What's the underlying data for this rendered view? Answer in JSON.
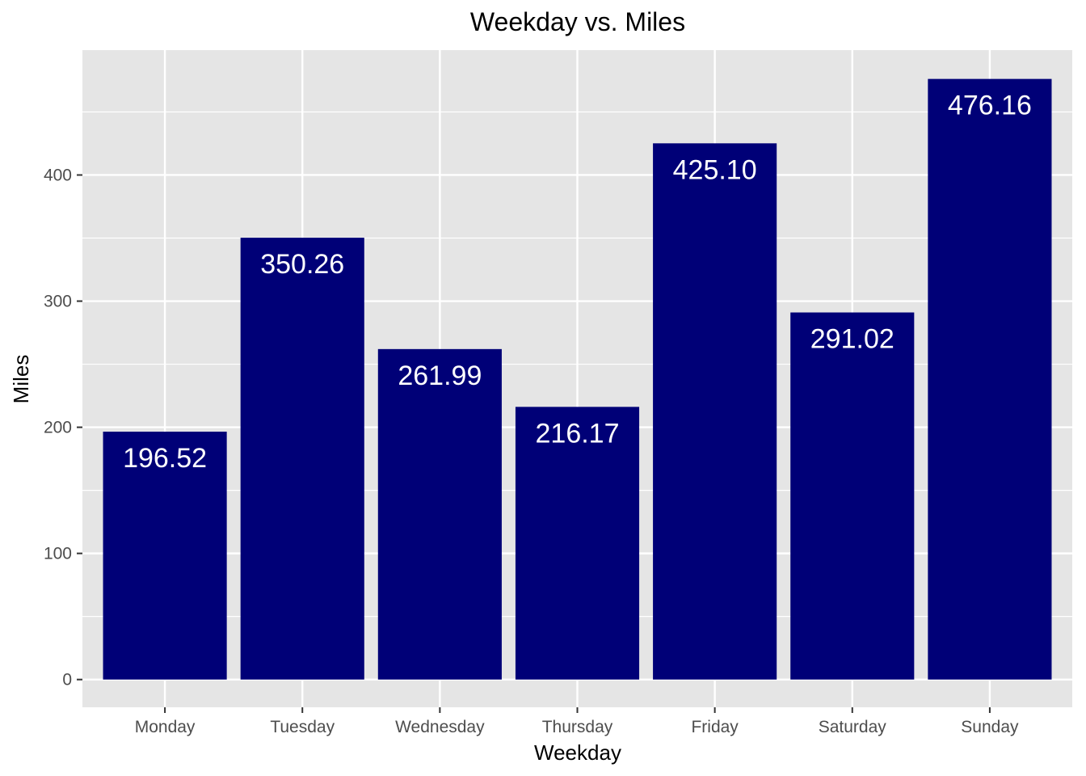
{
  "chart_data": {
    "type": "bar",
    "title": "Weekday vs. Miles",
    "xlabel": "Weekday",
    "ylabel": "Miles",
    "categories": [
      "Monday",
      "Tuesday",
      "Wednesday",
      "Thursday",
      "Friday",
      "Saturday",
      "Sunday"
    ],
    "values": [
      196.52,
      350.26,
      261.99,
      216.17,
      425.1,
      291.02,
      476.16
    ],
    "value_labels": [
      "196.52",
      "350.26",
      "261.99",
      "216.17",
      "425.10",
      "291.02",
      "476.16"
    ],
    "yticks": [
      0,
      100,
      200,
      300,
      400
    ],
    "ytick_labels": [
      "0",
      "100",
      "200",
      "300",
      "400"
    ],
    "ylim": [
      -22,
      499
    ],
    "grid": true,
    "colors": {
      "bar": "#000077",
      "panel": "#e5e5e5",
      "grid": "#ffffff",
      "bar_label": "#ffffff"
    }
  }
}
